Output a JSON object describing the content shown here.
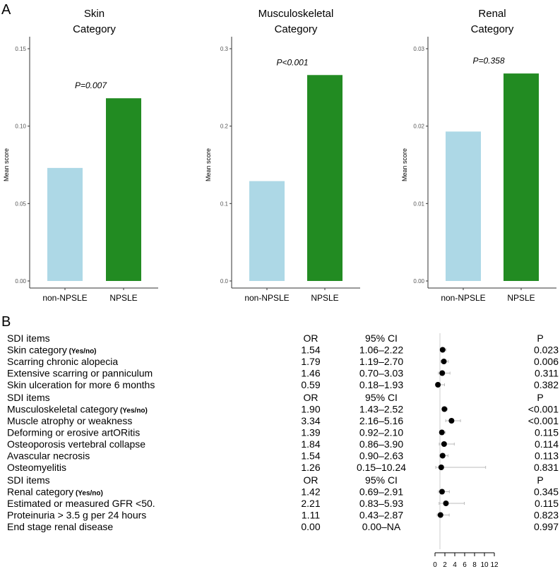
{
  "panel_labels": [
    "A",
    "B"
  ],
  "chart_data": [
    {
      "type": "bar",
      "title": "Skin\nCategory",
      "ylabel": "Mean score",
      "categories": [
        "non-NPSLE",
        "NPSLE"
      ],
      "values": [
        0.073,
        0.118
      ],
      "ylim": [
        0,
        0.15
      ],
      "ticks": [
        "0.00",
        "0.05",
        "0.10",
        "0.15"
      ],
      "annotation": "P=0.007",
      "colors": [
        "#add8e6",
        "#228b22"
      ]
    },
    {
      "type": "bar",
      "title": "Musculoskeletal\nCategory",
      "ylabel": "Mean score",
      "categories": [
        "non-NPSLE",
        "NPSLE"
      ],
      "values": [
        0.129,
        0.266
      ],
      "ylim": [
        0,
        0.3
      ],
      "ticks": [
        "0.0",
        "0.1",
        "0.2",
        "0.3"
      ],
      "annotation": "P<0.001",
      "colors": [
        "#add8e6",
        "#228b22"
      ]
    },
    {
      "type": "bar",
      "title": "Renal\nCategory",
      "ylabel": "Mean score",
      "categories": [
        "non-NPSLE",
        "NPSLE"
      ],
      "values": [
        0.0193,
        0.0268
      ],
      "ylim": [
        0,
        0.03
      ],
      "ticks": [
        "0.00",
        "0.01",
        "0.02",
        "0.03"
      ],
      "annotation": "P=0.358",
      "colors": [
        "#add8e6",
        "#228b22"
      ]
    },
    {
      "type": "forest",
      "headers": [
        "SDI items",
        "OR",
        "95% CI",
        "P"
      ],
      "xticks": [
        "0",
        "2",
        "4",
        "6",
        "8",
        "10",
        "12"
      ],
      "xlim": [
        0,
        12
      ],
      "ref": 1,
      "sections": [
        [
          {
            "item": "Skin category",
            "suffix": "(Yes/no)",
            "or": "1.54",
            "ci": "1.06–2.22",
            "p": "0.023",
            "lo": 1.06,
            "hi": 2.22
          },
          {
            "item": "Scarring chronic alopecia",
            "or": "1.79",
            "ci": "1.19–2.70",
            "p": "0.006",
            "lo": 1.19,
            "hi": 2.7
          },
          {
            "item": "Extensive scarring or panniculum",
            "or": "1.46",
            "ci": "0.70–3.03",
            "p": "0.311",
            "lo": 0.7,
            "hi": 3.03
          },
          {
            "item": "Skin ulceration for more 6 months",
            "or": "0.59",
            "ci": "0.18–1.93",
            "p": "0.382",
            "lo": 0.18,
            "hi": 1.93
          }
        ],
        [
          {
            "item": "Musculoskeletal category",
            "suffix": "(Yes/no)",
            "or": "1.90",
            "ci": "1.43–2.52",
            "p": "<0.001",
            "lo": 1.43,
            "hi": 2.52
          },
          {
            "item": "Muscle atrophy or weakness",
            "or": "3.34",
            "ci": "2.16–5.16",
            "p": "<0.001",
            "lo": 2.16,
            "hi": 5.16
          },
          {
            "item": "Deforming or erosive artORitis",
            "or": "1.39",
            "ci": "0.92–2.10",
            "p": "0.115",
            "lo": 0.92,
            "hi": 2.1
          },
          {
            "item": "Osteoporosis vertebral collapse",
            "or": "1.84",
            "ci": "0.86–3.90",
            "p": "0.114",
            "lo": 0.86,
            "hi": 3.9
          },
          {
            "item": "Avascular necrosis",
            "or": "1.54",
            "ci": "0.90–2.63",
            "p": "0.113",
            "lo": 0.9,
            "hi": 2.63
          },
          {
            "item": "Osteomyelitis",
            "or": "1.26",
            "ci": "0.15–10.24",
            "p": "0.831",
            "lo": 0.15,
            "hi": 10.24
          }
        ],
        [
          {
            "item": "Renal category",
            "suffix": "(Yes/no)",
            "or": "1.42",
            "ci": "0.69–2.91",
            "p": "0.345",
            "lo": 0.69,
            "hi": 2.91
          },
          {
            "item": "Estimated or measured GFR <50.",
            "or": "2.21",
            "ci": "0.83–5.93",
            "p": "0.115",
            "lo": 0.83,
            "hi": 5.93
          },
          {
            "item": "Proteinuria > 3.5 g per 24 hours",
            "or": "1.11",
            "ci": "0.43–2.87",
            "p": "0.823",
            "lo": 0.43,
            "hi": 2.87
          },
          {
            "item": "End stage renal disease",
            "or": "0.00",
            "ci": "0.00–NA",
            "p": "0.997",
            "lo": null,
            "hi": null
          }
        ]
      ]
    }
  ]
}
